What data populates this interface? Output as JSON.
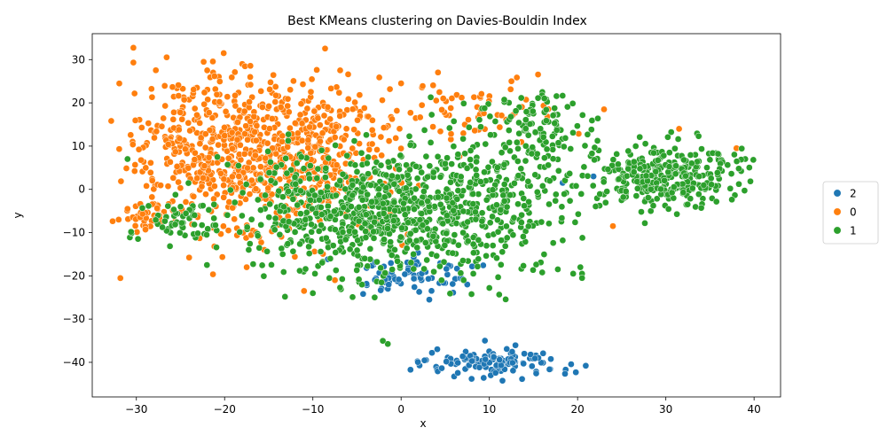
{
  "chart_data": {
    "type": "scatter",
    "title": "Best KMeans clustering on Davies-Bouldin Index",
    "xlabel": "x",
    "ylabel": "y",
    "xlim": [
      -35,
      43
    ],
    "ylim": [
      -48,
      36
    ],
    "xticks": [
      -30,
      -20,
      -10,
      0,
      10,
      20,
      30,
      40
    ],
    "yticks": [
      -40,
      -30,
      -20,
      -10,
      0,
      10,
      20,
      30
    ],
    "xtick_labels": [
      "−30",
      "−20",
      "−10",
      "0",
      "10",
      "20",
      "30",
      "40"
    ],
    "ytick_labels": [
      "−40",
      "−30",
      "−20",
      "−10",
      "0",
      "10",
      "20",
      "30"
    ],
    "grid": false,
    "legend": {
      "placement": "right-center",
      "entries": [
        "2",
        "0",
        "1"
      ]
    },
    "series": [
      {
        "name": "2",
        "color": "#1f77b4",
        "clusters": [
          {
            "cx": 10.5,
            "cy": -40.5,
            "sx": 4.0,
            "sy": 1.8,
            "n": 120
          },
          {
            "cx": 2.0,
            "cy": -20.0,
            "sx": 3.5,
            "sy": 2.0,
            "n": 70
          }
        ],
        "points": [
          [
            3.5,
            -37.8
          ],
          [
            9.5,
            -35.0
          ],
          [
            1.2,
            -18.5
          ],
          [
            18.3,
            1.5
          ],
          [
            21.8,
            3.0
          ],
          [
            25.2,
            -2.0
          ],
          [
            3.2,
            -25.5
          ],
          [
            7.5,
            -22.0
          ],
          [
            -1.5,
            -23.0
          ]
        ]
      },
      {
        "name": "0",
        "color": "#ff7f0e",
        "clusters": [
          {
            "cx": -20.0,
            "cy": 8.0,
            "sx": 6.0,
            "sy": 9.5,
            "n": 560
          },
          {
            "cx": -10.0,
            "cy": 10.0,
            "sx": 5.0,
            "sy": 8.0,
            "n": 330
          },
          {
            "cx": 8.0,
            "cy": 18.0,
            "sx": 5.0,
            "sy": 4.0,
            "n": 60
          },
          {
            "cx": -29.0,
            "cy": -6.0,
            "sx": 1.5,
            "sy": 2.0,
            "n": 40
          }
        ],
        "points": [
          [
            -20.1,
            31.5
          ],
          [
            -18.0,
            29.0
          ],
          [
            12.5,
            25.0
          ],
          [
            24.0,
            -8.5
          ],
          [
            -15.5,
            -14.0
          ],
          [
            -17.5,
            -18.0
          ],
          [
            -11.0,
            -23.5
          ],
          [
            -7.5,
            -21.0
          ],
          [
            0.0,
            24.5
          ],
          [
            -32.0,
            -7.0
          ],
          [
            31.5,
            14.0
          ],
          [
            38.0,
            9.5
          ],
          [
            23.0,
            18.5
          ]
        ]
      },
      {
        "name": "1",
        "color": "#2ca02c",
        "clusters": [
          {
            "cx": 0.0,
            "cy": -5.0,
            "sx": 5.5,
            "sy": 7.5,
            "n": 520
          },
          {
            "cx": -10.0,
            "cy": -5.0,
            "sx": 4.0,
            "sy": 7.0,
            "n": 220
          },
          {
            "cx": 12.0,
            "cy": 0.0,
            "sx": 5.0,
            "sy": 9.5,
            "n": 260
          },
          {
            "cx": 30.5,
            "cy": 3.0,
            "sx": 4.5,
            "sy": 3.5,
            "n": 320
          },
          {
            "cx": 15.0,
            "cy": 15.0,
            "sx": 2.5,
            "sy": 4.0,
            "n": 80
          },
          {
            "cx": -25.0,
            "cy": -8.0,
            "sx": 3.0,
            "sy": 2.5,
            "n": 60
          }
        ],
        "points": [
          [
            -31.0,
            7.0
          ],
          [
            19.5,
            -19.5
          ],
          [
            20.5,
            -19.5
          ],
          [
            10.0,
            -22.8
          ],
          [
            16.0,
            22.5
          ],
          [
            -3.0,
            -25.0
          ],
          [
            -10.0,
            -24.0
          ],
          [
            -22.0,
            -17.5
          ],
          [
            39.0,
            7.0
          ],
          [
            20.5,
            -20.5
          ]
        ]
      }
    ]
  }
}
